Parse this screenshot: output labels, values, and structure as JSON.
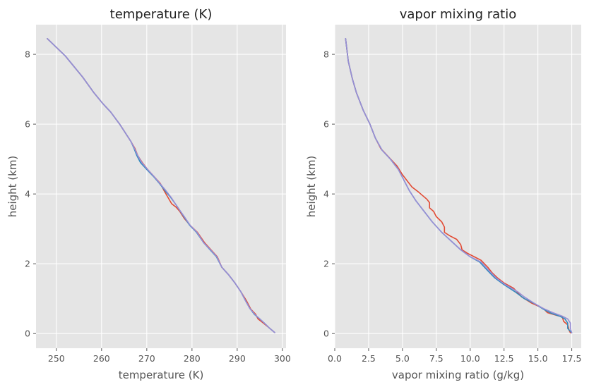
{
  "figure": {
    "background": "#ffffff"
  },
  "style": {
    "axes_facecolor": "#e5e5e5",
    "grid_color": "#ffffff",
    "tick_color": "#555555",
    "series_colors": [
      "#e24a33",
      "#348abd",
      "#988ed5"
    ]
  },
  "chart_data": [
    {
      "type": "line",
      "title": "temperature (K)",
      "xlabel": "temperature (K)",
      "ylabel": "height (km)",
      "xlim": [
        245.5,
        300.8
      ],
      "ylim": [
        -0.42,
        8.85
      ],
      "xticks": [
        250,
        260,
        270,
        280,
        290,
        300
      ],
      "yticks": [
        0,
        2,
        4,
        6,
        8
      ],
      "xtick_labels": [
        "250",
        "260",
        "270",
        "280",
        "290",
        "300"
      ],
      "ytick_labels": [
        "0",
        "2",
        "4",
        "6",
        "8"
      ],
      "grid": true,
      "series": [
        {
          "color": "#e24a33",
          "points": [
            [
              248.0,
              8.45
            ],
            [
              252.0,
              7.95
            ],
            [
              255.8,
              7.35
            ],
            [
              258.3,
              6.9
            ],
            [
              260.2,
              6.6
            ],
            [
              262.0,
              6.35
            ],
            [
              264.0,
              6.0
            ],
            [
              266.5,
              5.5
            ],
            [
              267.4,
              5.3
            ],
            [
              268.0,
              5.1
            ],
            [
              269.0,
              4.9
            ],
            [
              270.2,
              4.7
            ],
            [
              271.6,
              4.5
            ],
            [
              273.0,
              4.3
            ],
            [
              273.8,
              4.1
            ],
            [
              274.7,
              3.9
            ],
            [
              275.5,
              3.72
            ],
            [
              276.5,
              3.62
            ],
            [
              277.3,
              3.5
            ],
            [
              278.3,
              3.3
            ],
            [
              279.6,
              3.1
            ],
            [
              281.2,
              2.9
            ],
            [
              282.8,
              2.6
            ],
            [
              284.2,
              2.4
            ],
            [
              285.6,
              2.2
            ],
            [
              286.6,
              1.9
            ],
            [
              288.0,
              1.7
            ],
            [
              289.5,
              1.45
            ],
            [
              290.8,
              1.2
            ],
            [
              292.0,
              0.95
            ],
            [
              293.0,
              0.7
            ],
            [
              294.1,
              0.55
            ],
            [
              294.6,
              0.42
            ],
            [
              295.8,
              0.3
            ],
            [
              297.2,
              0.15
            ],
            [
              298.3,
              0.03
            ]
          ]
        },
        {
          "color": "#348abd",
          "points": [
            [
              248.0,
              8.45
            ],
            [
              252.0,
              7.95
            ],
            [
              255.8,
              7.35
            ],
            [
              258.3,
              6.9
            ],
            [
              260.2,
              6.6
            ],
            [
              262.0,
              6.35
            ],
            [
              264.0,
              6.0
            ],
            [
              266.5,
              5.5
            ],
            [
              267.2,
              5.3
            ],
            [
              267.8,
              5.1
            ],
            [
              268.6,
              4.9
            ],
            [
              270.0,
              4.7
            ],
            [
              271.5,
              4.5
            ],
            [
              272.8,
              4.3
            ],
            [
              274.0,
              4.1
            ],
            [
              275.3,
              3.9
            ],
            [
              276.3,
              3.72
            ],
            [
              277.2,
              3.55
            ],
            [
              278.2,
              3.35
            ],
            [
              279.5,
              3.1
            ],
            [
              281.0,
              2.9
            ],
            [
              282.6,
              2.6
            ],
            [
              284.0,
              2.4
            ],
            [
              285.4,
              2.2
            ],
            [
              286.6,
              1.9
            ],
            [
              288.0,
              1.7
            ],
            [
              289.5,
              1.45
            ],
            [
              290.8,
              1.2
            ],
            [
              291.8,
              0.95
            ],
            [
              292.8,
              0.72
            ],
            [
              293.8,
              0.55
            ],
            [
              295.0,
              0.42
            ],
            [
              296.0,
              0.3
            ],
            [
              297.2,
              0.15
            ],
            [
              298.3,
              0.03
            ]
          ]
        },
        {
          "color": "#988ed5",
          "points": [
            [
              248.0,
              8.45
            ],
            [
              252.0,
              7.95
            ],
            [
              255.8,
              7.35
            ],
            [
              258.3,
              6.9
            ],
            [
              260.2,
              6.6
            ],
            [
              262.0,
              6.35
            ],
            [
              264.0,
              6.0
            ],
            [
              266.5,
              5.5
            ],
            [
              267.3,
              5.3
            ],
            [
              268.0,
              5.1
            ],
            [
              268.9,
              4.9
            ],
            [
              270.2,
              4.7
            ],
            [
              271.6,
              4.5
            ],
            [
              272.9,
              4.3
            ],
            [
              274.2,
              4.1
            ],
            [
              275.4,
              3.9
            ],
            [
              276.3,
              3.72
            ],
            [
              277.2,
              3.55
            ],
            [
              278.3,
              3.35
            ],
            [
              279.6,
              3.1
            ],
            [
              281.1,
              2.9
            ],
            [
              282.6,
              2.6
            ],
            [
              284.1,
              2.4
            ],
            [
              285.5,
              2.2
            ],
            [
              286.6,
              1.9
            ],
            [
              288.0,
              1.7
            ],
            [
              289.5,
              1.45
            ],
            [
              290.8,
              1.2
            ],
            [
              291.8,
              0.95
            ],
            [
              292.8,
              0.72
            ],
            [
              293.9,
              0.55
            ],
            [
              295.0,
              0.42
            ],
            [
              296.0,
              0.3
            ],
            [
              297.2,
              0.15
            ],
            [
              298.3,
              0.03
            ]
          ]
        }
      ]
    },
    {
      "type": "line",
      "title": "vapor mixing ratio",
      "xlabel": "vapor mixing ratio (g/kg)",
      "ylabel": "height (km)",
      "xlim": [
        0.0,
        18.2
      ],
      "ylim": [
        -0.42,
        8.85
      ],
      "xticks": [
        0.0,
        2.5,
        5.0,
        7.5,
        10.0,
        12.5,
        15.0,
        17.5
      ],
      "yticks": [
        0,
        2,
        4,
        6,
        8
      ],
      "xtick_labels": [
        "0.0",
        "2.5",
        "5.0",
        "7.5",
        "10.0",
        "12.5",
        "15.0",
        "17.5"
      ],
      "ytick_labels": [
        "0",
        "2",
        "4",
        "6",
        "8"
      ],
      "grid": true,
      "series": [
        {
          "color": "#e24a33",
          "points": [
            [
              0.8,
              8.45
            ],
            [
              1.0,
              7.8
            ],
            [
              1.3,
              7.3
            ],
            [
              1.6,
              6.9
            ],
            [
              2.1,
              6.4
            ],
            [
              2.6,
              6.0
            ],
            [
              3.0,
              5.6
            ],
            [
              3.4,
              5.3
            ],
            [
              4.0,
              5.05
            ],
            [
              4.6,
              4.8
            ],
            [
              5.0,
              4.55
            ],
            [
              5.4,
              4.35
            ],
            [
              5.7,
              4.2
            ],
            [
              6.2,
              4.05
            ],
            [
              6.8,
              3.85
            ],
            [
              7.0,
              3.75
            ],
            [
              7.0,
              3.6
            ],
            [
              7.3,
              3.5
            ],
            [
              7.5,
              3.35
            ],
            [
              7.9,
              3.2
            ],
            [
              8.1,
              3.05
            ],
            [
              8.1,
              2.9
            ],
            [
              8.5,
              2.8
            ],
            [
              9.0,
              2.7
            ],
            [
              9.3,
              2.55
            ],
            [
              9.4,
              2.4
            ],
            [
              9.8,
              2.3
            ],
            [
              10.3,
              2.2
            ],
            [
              10.8,
              2.1
            ],
            [
              11.3,
              1.9
            ],
            [
              11.6,
              1.75
            ],
            [
              12.0,
              1.6
            ],
            [
              12.5,
              1.45
            ],
            [
              13.2,
              1.3
            ],
            [
              13.8,
              1.05
            ],
            [
              14.5,
              0.88
            ],
            [
              15.4,
              0.72
            ],
            [
              15.7,
              0.6
            ],
            [
              16.4,
              0.52
            ],
            [
              16.8,
              0.48
            ],
            [
              16.9,
              0.35
            ],
            [
              17.2,
              0.25
            ],
            [
              17.3,
              0.1
            ],
            [
              17.4,
              0.02
            ]
          ]
        },
        {
          "color": "#348abd",
          "points": [
            [
              0.8,
              8.45
            ],
            [
              1.0,
              7.8
            ],
            [
              1.3,
              7.3
            ],
            [
              1.6,
              6.9
            ],
            [
              2.1,
              6.4
            ],
            [
              2.6,
              6.0
            ],
            [
              3.0,
              5.6
            ],
            [
              3.5,
              5.25
            ],
            [
              4.1,
              5.0
            ],
            [
              4.7,
              4.7
            ],
            [
              5.1,
              4.4
            ],
            [
              5.5,
              4.1
            ],
            [
              6.0,
              3.8
            ],
            [
              6.6,
              3.5
            ],
            [
              7.2,
              3.2
            ],
            [
              7.9,
              2.9
            ],
            [
              8.6,
              2.65
            ],
            [
              9.3,
              2.4
            ],
            [
              10.0,
              2.2
            ],
            [
              10.7,
              2.05
            ],
            [
              11.3,
              1.8
            ],
            [
              11.8,
              1.6
            ],
            [
              12.5,
              1.4
            ],
            [
              13.3,
              1.2
            ],
            [
              14.0,
              1.0
            ],
            [
              14.8,
              0.85
            ],
            [
              15.4,
              0.7
            ],
            [
              16.0,
              0.58
            ],
            [
              16.6,
              0.5
            ],
            [
              17.0,
              0.42
            ],
            [
              17.2,
              0.3
            ],
            [
              17.2,
              0.15
            ],
            [
              17.5,
              0.02
            ]
          ]
        },
        {
          "color": "#988ed5",
          "points": [
            [
              0.8,
              8.45
            ],
            [
              1.0,
              7.8
            ],
            [
              1.3,
              7.3
            ],
            [
              1.6,
              6.9
            ],
            [
              2.1,
              6.4
            ],
            [
              2.6,
              6.0
            ],
            [
              3.0,
              5.6
            ],
            [
              3.5,
              5.25
            ],
            [
              4.1,
              5.0
            ],
            [
              4.7,
              4.7
            ],
            [
              5.1,
              4.4
            ],
            [
              5.5,
              4.1
            ],
            [
              6.0,
              3.8
            ],
            [
              6.6,
              3.5
            ],
            [
              7.2,
              3.2
            ],
            [
              7.9,
              2.9
            ],
            [
              8.6,
              2.65
            ],
            [
              9.3,
              2.4
            ],
            [
              10.0,
              2.2
            ],
            [
              10.8,
              2.05
            ],
            [
              11.4,
              1.8
            ],
            [
              11.9,
              1.6
            ],
            [
              12.6,
              1.4
            ],
            [
              13.5,
              1.2
            ],
            [
              14.0,
              1.05
            ],
            [
              14.8,
              0.85
            ],
            [
              15.4,
              0.72
            ],
            [
              16.1,
              0.6
            ],
            [
              16.8,
              0.5
            ],
            [
              17.2,
              0.42
            ],
            [
              17.4,
              0.3
            ],
            [
              17.4,
              0.15
            ],
            [
              17.5,
              0.02
            ]
          ]
        }
      ]
    }
  ]
}
